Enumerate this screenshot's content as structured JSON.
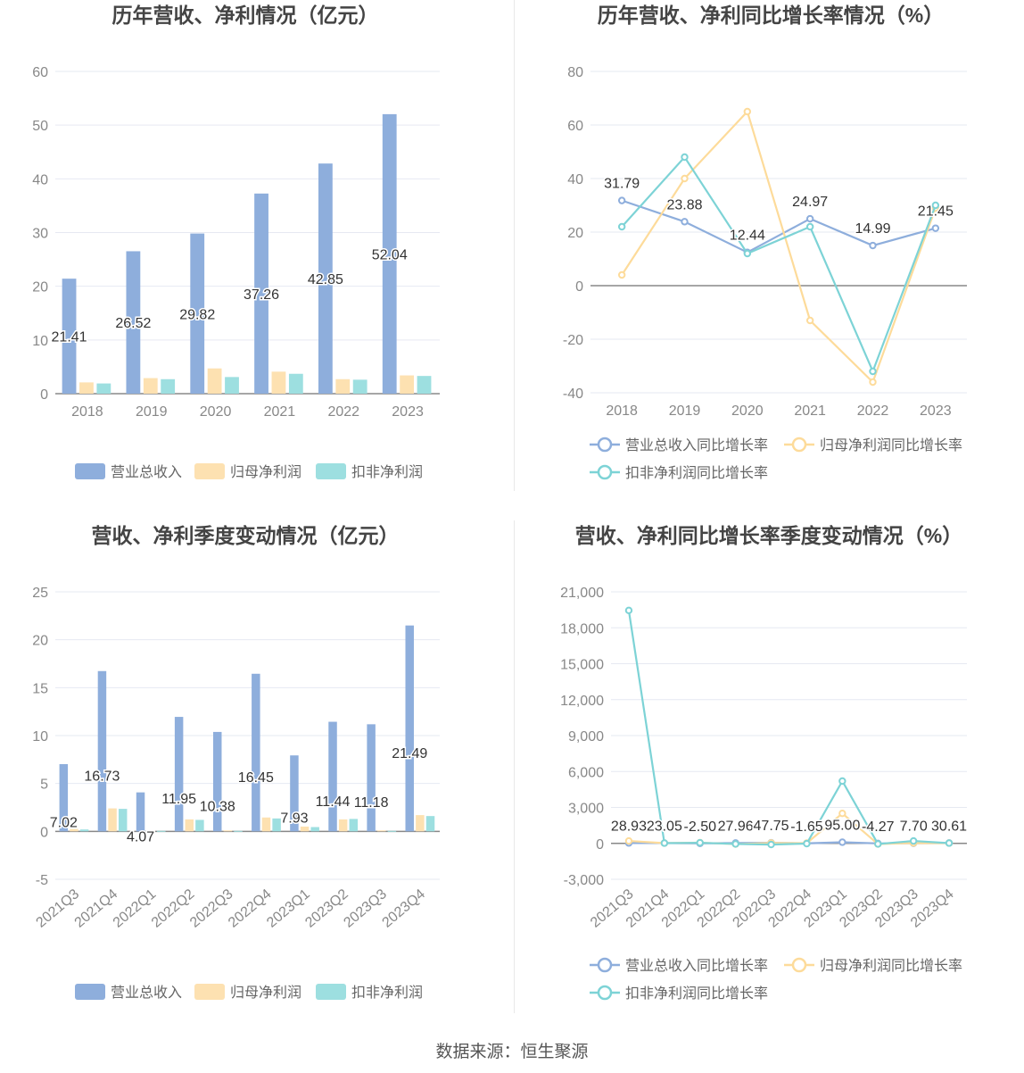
{
  "footer": {
    "source": "数据来源：恒生聚源"
  },
  "chart_data": [
    {
      "id": "annual-bar",
      "type": "bar",
      "title": "历年营收、净利情况（亿元）",
      "categories": [
        "2018",
        "2019",
        "2020",
        "2021",
        "2022",
        "2023"
      ],
      "ylim": [
        0,
        60
      ],
      "yticks": [
        0,
        10,
        20,
        30,
        40,
        50,
        60
      ],
      "label_series": 0,
      "series": [
        {
          "name": "营业总收入",
          "color": "#8eaedc",
          "values": [
            21.41,
            26.52,
            29.82,
            37.26,
            42.85,
            52.04
          ],
          "labels": [
            "21.41",
            "26.52",
            "29.82",
            "37.26",
            "42.85",
            "52.04"
          ]
        },
        {
          "name": "归母净利润",
          "color": "#fde1b1",
          "values": [
            2.1,
            2.9,
            4.7,
            4.1,
            2.7,
            3.4
          ]
        },
        {
          "name": "扣非净利润",
          "color": "#9ddfe0",
          "values": [
            1.9,
            2.7,
            3.1,
            3.7,
            2.6,
            3.3
          ]
        }
      ]
    },
    {
      "id": "annual-line",
      "type": "line",
      "title": "历年营收、净利同比增长率情况（%）",
      "categories": [
        "2018",
        "2019",
        "2020",
        "2021",
        "2022",
        "2023"
      ],
      "ylim": [
        -40,
        80
      ],
      "yticks": [
        -40,
        -20,
        0,
        20,
        40,
        60,
        80
      ],
      "label_series": 0,
      "series": [
        {
          "name": "营业总收入同比增长率",
          "color": "#8eaedc",
          "values": [
            31.79,
            23.88,
            12.44,
            24.97,
            14.99,
            21.45
          ],
          "labels": [
            "31.79",
            "23.88",
            "12.44",
            "24.97",
            "14.99",
            "21.45"
          ]
        },
        {
          "name": "归母净利润同比增长率",
          "color": "#fddb9a",
          "values": [
            4,
            40,
            65,
            -13,
            -36,
            29
          ]
        },
        {
          "name": "扣非净利润同比增长率",
          "color": "#7dd3d6",
          "values": [
            22,
            48,
            12,
            22,
            -32,
            30
          ]
        }
      ]
    },
    {
      "id": "quarter-bar",
      "type": "bar",
      "title": "营收、净利季度变动情况（亿元）",
      "categories": [
        "2021Q3",
        "2021Q4",
        "2022Q1",
        "2022Q2",
        "2022Q3",
        "2022Q4",
        "2023Q1",
        "2023Q2",
        "2023Q3",
        "2023Q4"
      ],
      "ylim": [
        -5,
        25
      ],
      "yticks": [
        -5,
        0,
        5,
        10,
        15,
        20,
        25
      ],
      "label_series": 0,
      "series": [
        {
          "name": "营业总收入",
          "color": "#8eaedc",
          "values": [
            7.02,
            16.73,
            4.07,
            11.95,
            10.38,
            16.45,
            7.93,
            11.44,
            11.18,
            21.49
          ],
          "labels": [
            "7.02",
            "16.73",
            "4.07",
            "11.95",
            "10.38",
            "16.45",
            "7.93",
            "11.44",
            "11.18",
            "21.49"
          ]
        },
        {
          "name": "归母净利润",
          "color": "#fde1b1",
          "values": [
            0.25,
            2.4,
            0.05,
            1.25,
            0.1,
            1.45,
            0.5,
            1.25,
            0.1,
            1.7
          ]
        },
        {
          "name": "扣非净利润",
          "color": "#9ddfe0",
          "values": [
            0.2,
            2.35,
            0.05,
            1.2,
            0.05,
            1.35,
            0.45,
            1.3,
            0.05,
            1.6
          ]
        }
      ]
    },
    {
      "id": "quarter-line",
      "type": "line",
      "title": "营收、净利同比增长率季度变动情况（%）",
      "categories": [
        "2021Q3",
        "2021Q4",
        "2022Q1",
        "2022Q2",
        "2022Q3",
        "2022Q4",
        "2023Q1",
        "2023Q2",
        "2023Q3",
        "2023Q4"
      ],
      "ylim": [
        -3000,
        21000
      ],
      "yticks": [
        -3000,
        0,
        3000,
        6000,
        9000,
        12000,
        15000,
        18000,
        21000
      ],
      "ytick_labels": [
        "-3,000",
        "0",
        "3,000",
        "6,000",
        "9,000",
        "12,000",
        "15,000",
        "18,000",
        "21,000"
      ],
      "label_series": 0,
      "series": [
        {
          "name": "营业总收入同比增长率",
          "color": "#8eaedc",
          "values": [
            28.93,
            23.05,
            -2.5,
            27.96,
            47.75,
            -1.65,
            95.0,
            -4.27,
            7.7,
            30.61
          ],
          "labels": [
            "28.93",
            "23.05",
            "-2.50",
            "27.96",
            "47.75",
            "-1.65",
            "95.00",
            "-4.27",
            "7.70",
            "30.61"
          ]
        },
        {
          "name": "归母净利润同比增长率",
          "color": "#fddb9a",
          "values": [
            200,
            20,
            60,
            -60,
            30,
            20,
            2500,
            -60,
            30,
            20
          ]
        },
        {
          "name": "扣非净利润同比增长率",
          "color": "#7dd3d6",
          "values": [
            19450,
            20,
            50,
            -50,
            -100,
            -20,
            5200,
            -50,
            200,
            20
          ]
        }
      ]
    }
  ]
}
